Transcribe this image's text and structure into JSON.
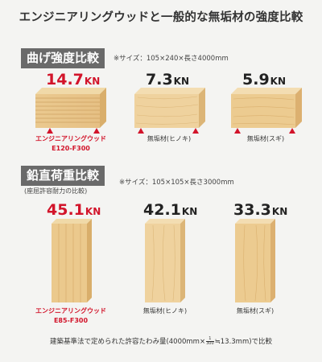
{
  "title": "エンジニアリングウッドと一般的な無垢材の強度比較",
  "bending": {
    "label": "曲げ強度比較",
    "note": "※サイズ：105×240×長さ4000mm",
    "items": [
      {
        "value": "14.7",
        "unit": "KN",
        "caption1": "エンジニアリングウッド",
        "caption2": "E120-F300"
      },
      {
        "value": "7.3",
        "unit": "KN",
        "caption1": "無垢材(ヒノキ)",
        "caption2": ""
      },
      {
        "value": "5.9",
        "unit": "KN",
        "caption1": "無垢材(スギ)",
        "caption2": ""
      }
    ]
  },
  "vertical": {
    "label": "鉛直荷重比較",
    "sublabel": "(座屈許容耐力の比較)",
    "note": "※サイズ：105×105×長さ3000mm",
    "items": [
      {
        "value": "45.1",
        "unit": "KN",
        "caption1": "エンジニアリングウッド",
        "caption2": "E85-F300"
      },
      {
        "value": "42.1",
        "unit": "KN",
        "caption1": "無垢材(ヒノキ)",
        "caption2": ""
      },
      {
        "value": "33.3",
        "unit": "KN",
        "caption1": "無垢材(スギ)",
        "caption2": ""
      }
    ]
  },
  "footer": {
    "before": "建築基準法で定められた許容たわみ量(4000mm×",
    "frac_num": "1",
    "frac_den": "300",
    "after": "≒13.3mm)で比較"
  },
  "colors": {
    "accent": "#d2142a",
    "label_bg": "#6a6a6a"
  }
}
